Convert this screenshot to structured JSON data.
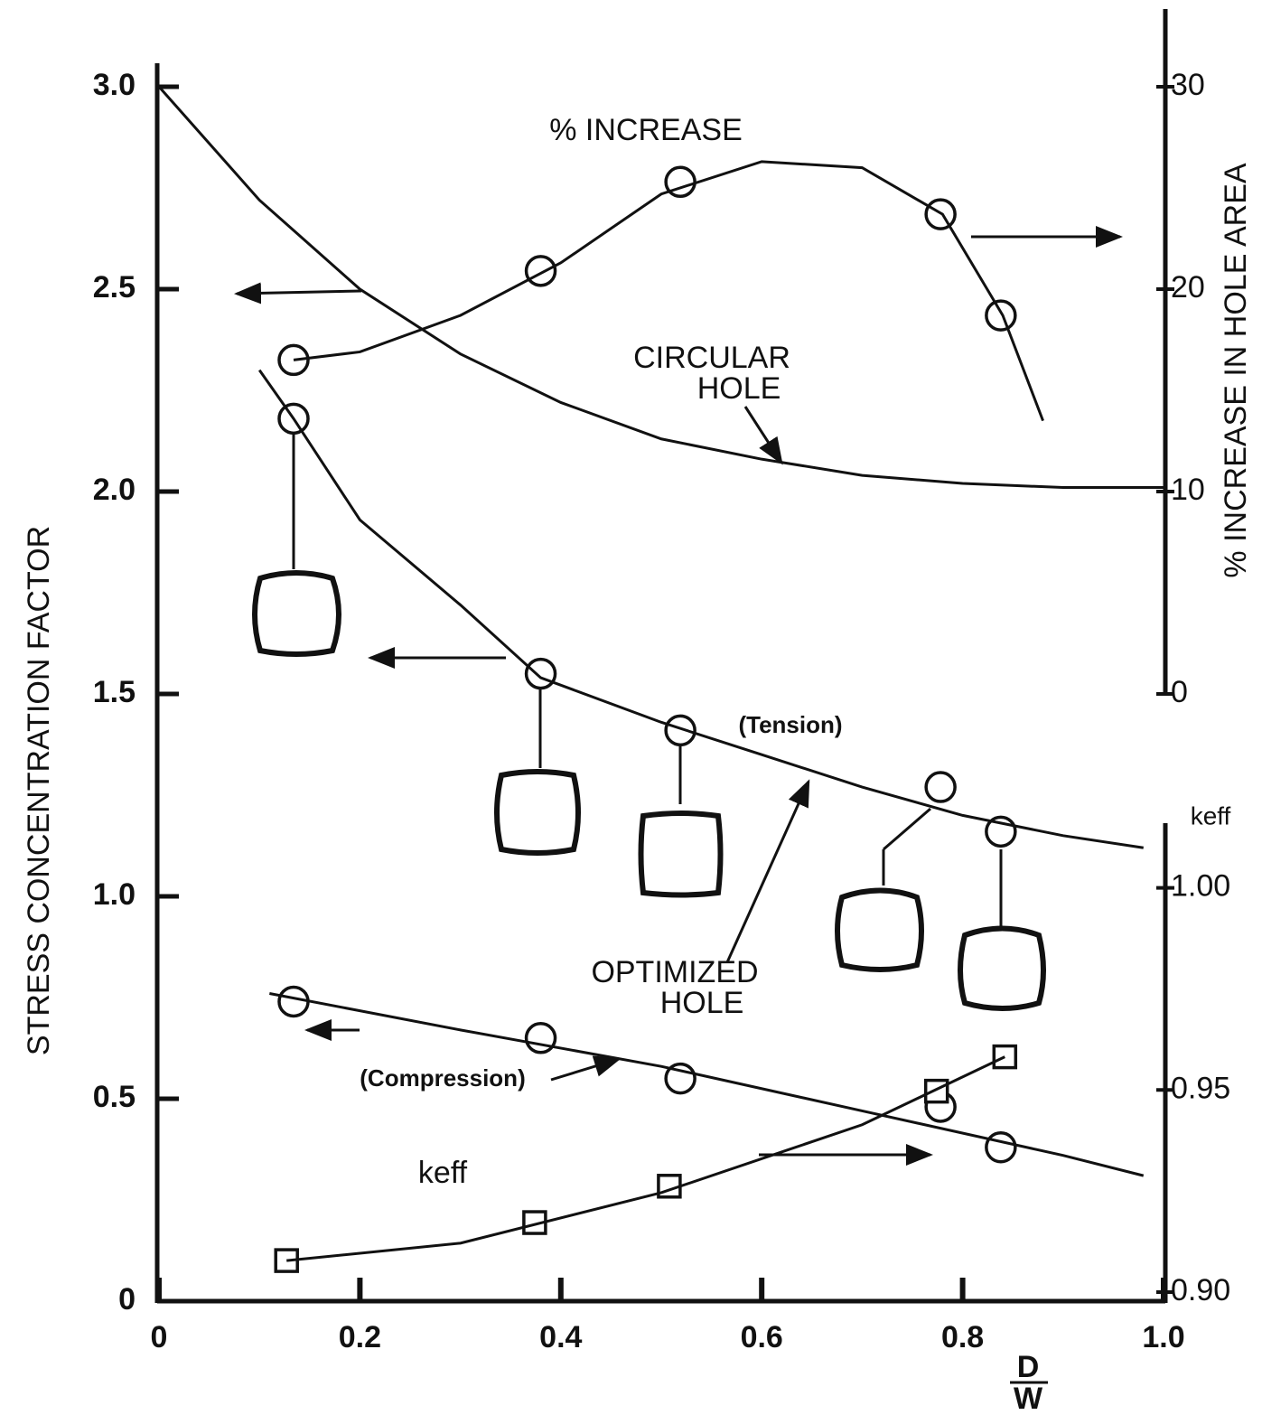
{
  "chart_data": {
    "type": "line",
    "xlabel": [
      "D",
      "W"
    ],
    "ylabel": "STRESS CONCENTRATION FACTOR",
    "y2label": "% INCREASE IN HOLE AREA",
    "y3label": "keff",
    "xlim": [
      0,
      1
    ],
    "xticks": [
      0,
      0.2,
      0.4,
      0.6,
      0.8,
      {
        "value": 1,
        "label": "1.0"
      }
    ],
    "ylim": [
      0,
      3
    ],
    "yticks": [
      0,
      0.5,
      {
        "value": 1,
        "label": "1.0"
      },
      1.5,
      {
        "value": 2,
        "label": "2.0"
      },
      2.5,
      {
        "value": 3,
        "label": "3.0"
      }
    ],
    "y2lim": [
      0,
      30
    ],
    "y2ticks": [
      0,
      10,
      20,
      30
    ],
    "y3lim": [
      0.9,
      1.016
    ],
    "y3ticks": [
      {
        "value": 0.9,
        "label": "0.90"
      },
      0.95,
      {
        "value": 1,
        "label": "1.00"
      }
    ],
    "annotations": [
      [
        "CIRCULAR",
        "HOLE"
      ],
      [
        "OPTIMIZED",
        "HOLE"
      ]
    ],
    "series": [
      {
        "name": "% INCREASE",
        "axis": "y2",
        "marker": "circle",
        "x": [
          0.134,
          0.38,
          0.519,
          0.778,
          0.838
        ],
        "values": [
          16.5,
          20.9,
          25.3,
          23.7,
          18.7
        ]
      },
      {
        "axis": "y2",
        "line": true,
        "x": [
          0.134,
          0.2,
          0.3,
          0.4,
          0.5,
          0.6,
          0.7,
          0.78,
          0.84,
          0.88
        ],
        "values": [
          16.5,
          16.9,
          18.7,
          21.3,
          24.7,
          26.3,
          26,
          23.7,
          18.7,
          13.5
        ]
      },
      {
        "axis": "y",
        "line": true,
        "x": [
          0,
          0.1,
          0.2,
          0.3,
          0.4,
          0.5,
          0.6,
          0.7,
          0.8,
          0.9,
          1
        ],
        "values": [
          3,
          2.72,
          2.5,
          2.34,
          2.22,
          2.13,
          2.08,
          2.04,
          2.02,
          2.01,
          2.01
        ]
      },
      {
        "name": "(Tension)",
        "axis": "y",
        "marker": "circle",
        "x": [
          0.134,
          0.38,
          0.519,
          0.778,
          0.838
        ],
        "values": [
          2.18,
          1.55,
          1.41,
          1.27,
          1.16
        ]
      },
      {
        "axis": "y",
        "line": true,
        "x": [
          0.1,
          0.134,
          0.2,
          0.3,
          0.38,
          0.5,
          0.6,
          0.7,
          0.8,
          0.9,
          0.98
        ],
        "values": [
          2.3,
          2.18,
          1.93,
          1.72,
          1.54,
          1.43,
          1.35,
          1.27,
          1.2,
          1.15,
          1.12
        ]
      },
      {
        "name": "(Compression)",
        "axis": "y",
        "marker": "circle",
        "x": [
          0.134,
          0.38,
          0.519,
          0.778,
          0.838
        ],
        "values": [
          0.74,
          0.65,
          0.55,
          0.48,
          0.38
        ]
      },
      {
        "axis": "y",
        "line": true,
        "x": [
          0.11,
          0.3,
          0.5,
          0.7,
          0.9,
          0.98
        ],
        "values": [
          0.76,
          0.67,
          0.58,
          0.47,
          0.36,
          0.31
        ]
      },
      {
        "name": "keff",
        "axis": "y3",
        "marker": "square",
        "x": [
          0.127,
          0.374,
          0.508,
          0.774,
          0.842
        ],
        "values": [
          0.9078,
          0.9172,
          0.9262,
          0.9497,
          0.9582
        ]
      },
      {
        "axis": "y3",
        "line": true,
        "x": [
          0.127,
          0.3,
          0.5,
          0.7,
          0.842
        ],
        "values": [
          0.9078,
          0.9121,
          0.9246,
          0.9414,
          0.9582
        ]
      }
    ]
  }
}
